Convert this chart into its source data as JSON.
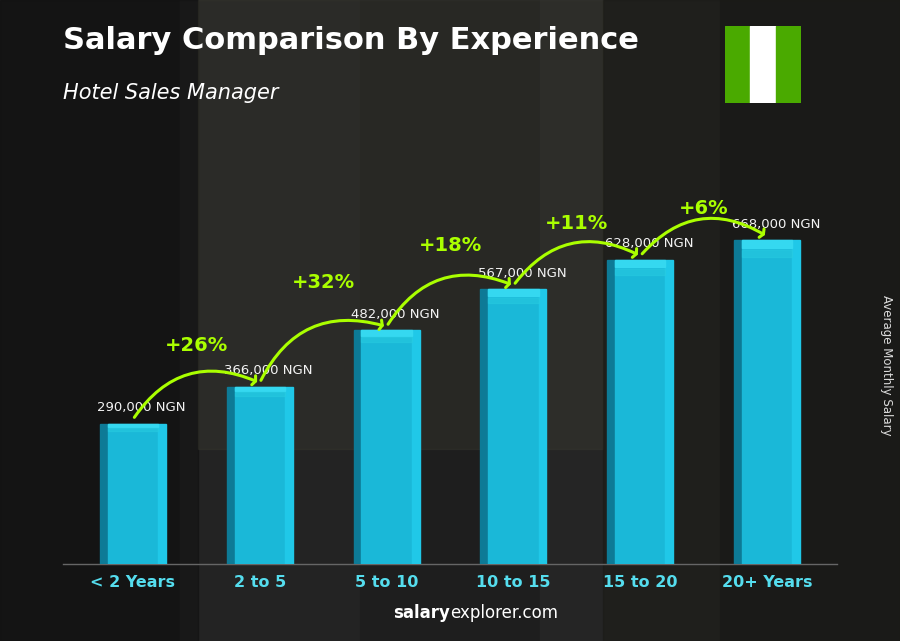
{
  "title": "Salary Comparison By Experience",
  "subtitle": "Hotel Sales Manager",
  "categories": [
    "< 2 Years",
    "2 to 5",
    "5 to 10",
    "10 to 15",
    "15 to 20",
    "20+ Years"
  ],
  "values": [
    290000,
    366000,
    482000,
    567000,
    628000,
    668000
  ],
  "labels": [
    "290,000 NGN",
    "366,000 NGN",
    "482,000 NGN",
    "567,000 NGN",
    "628,000 NGN",
    "668,000 NGN"
  ],
  "pct_changes": [
    "+26%",
    "+32%",
    "+18%",
    "+11%",
    "+6%"
  ],
  "bar_face_color": "#1ab8d8",
  "bar_left_color": "#0d7a96",
  "bar_right_color": "#20c8e8",
  "bar_top_color": "#35d8f0",
  "background_color": "#2a2a2a",
  "title_color": "#ffffff",
  "label_color": "#ffffff",
  "pct_color": "#aaff00",
  "xtick_color": "#55ddee",
  "footer_text_normal": "explorer.com",
  "footer_text_bold": "salary",
  "ylabel": "Average Monthly Salary",
  "arrow_color": "#aaff00",
  "flag_green": "#4aaa00",
  "flag_white": "#ffffff",
  "ylim": [
    0,
    820000
  ],
  "bar_width": 0.52
}
